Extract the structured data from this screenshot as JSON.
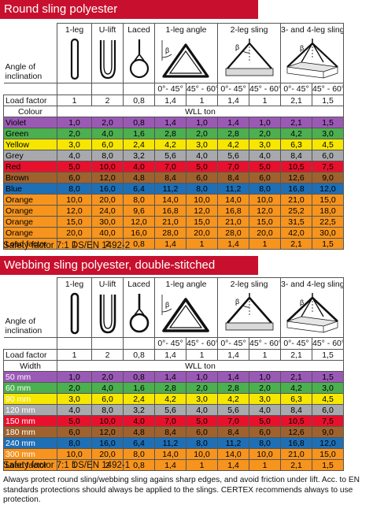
{
  "sections": [
    {
      "title": "Round sling polyester",
      "headers": [
        "1-leg",
        "U-lift",
        "Laced",
        "1-leg angle",
        "2-leg sling",
        "3- and 4-leg sling"
      ],
      "inclination_label": [
        "Angle of",
        "inclination"
      ],
      "angles": [
        "0°- 45°",
        "45° - 60°",
        "0°- 45°",
        "45° - 60°",
        "0°- 45°",
        "45° - 60°"
      ],
      "load_factor_label": "Load factor",
      "load_factors": [
        "1",
        "2",
        "0,8",
        "1,4",
        "1",
        "1,4",
        "1",
        "2,1",
        "1,5"
      ],
      "key_label": "Colour",
      "wll_label": "WLL ton",
      "rows": [
        {
          "label": "Violet",
          "bg": "#9b59b6",
          "fg": "#000000",
          "values": [
            "1,0",
            "2,0",
            "0,8",
            "1,4",
            "1,0",
            "1,4",
            "1,0",
            "2,1",
            "1,5"
          ]
        },
        {
          "label": "Green",
          "bg": "#4caf50",
          "fg": "#000000",
          "values": [
            "2,0",
            "4,0",
            "1,6",
            "2,8",
            "2,0",
            "2,8",
            "2,0",
            "4,2",
            "3,0"
          ]
        },
        {
          "label": "Yellow",
          "bg": "#f7e600",
          "fg": "#000000",
          "values": [
            "3,0",
            "6,0",
            "2,4",
            "4,2",
            "3,0",
            "4,2",
            "3,0",
            "6,3",
            "4,5"
          ]
        },
        {
          "label": "Grey",
          "bg": "#a7a9ac",
          "fg": "#000000",
          "values": [
            "4,0",
            "8,0",
            "3,2",
            "5,6",
            "4,0",
            "5,6",
            "4,0",
            "8,4",
            "6,0"
          ]
        },
        {
          "label": "Red",
          "bg": "#e8112d",
          "fg": "#000000",
          "values": [
            "5,0",
            "10,0",
            "4,0",
            "7,0",
            "5,0",
            "7,0",
            "5,0",
            "10,5",
            "7,5"
          ]
        },
        {
          "label": "Brown",
          "bg": "#a0622d",
          "fg": "#000000",
          "values": [
            "6,0",
            "12,0",
            "4,8",
            "8,4",
            "6,0",
            "8,4",
            "6,0",
            "12,6",
            "9,0"
          ]
        },
        {
          "label": "Blue",
          "bg": "#1f6fb5",
          "fg": "#000000",
          "values": [
            "8,0",
            "16,0",
            "6,4",
            "11,2",
            "8,0",
            "11,2",
            "8,0",
            "16,8",
            "12,0"
          ]
        },
        {
          "label": "Orange",
          "bg": "#f7941d",
          "fg": "#000000",
          "values": [
            "10,0",
            "20,0",
            "8,0",
            "14,0",
            "10,0",
            "14,0",
            "10,0",
            "21,0",
            "15,0"
          ]
        },
        {
          "label": "Orange",
          "bg": "#f7941d",
          "fg": "#000000",
          "values": [
            "12,0",
            "24,0",
            "9,6",
            "16,8",
            "12,0",
            "16,8",
            "12,0",
            "25,2",
            "18,0"
          ]
        },
        {
          "label": "Orange",
          "bg": "#f7941d",
          "fg": "#000000",
          "values": [
            "15,0",
            "30,0",
            "12,0",
            "21,0",
            "15,0",
            "21,0",
            "15,0",
            "31,5",
            "22,5"
          ]
        },
        {
          "label": "Orange",
          "bg": "#f7941d",
          "fg": "#000000",
          "values": [
            "20,0",
            "40,0",
            "16,0",
            "28,0",
            "20,0",
            "28,0",
            "20,0",
            "42,0",
            "30,0"
          ]
        },
        {
          "label": "Load factor",
          "bg": "#f7941d",
          "fg": "#000000",
          "values": [
            "1",
            "2",
            "0,8",
            "1,4",
            "1",
            "1,4",
            "1",
            "2,1",
            "1,5"
          ]
        }
      ],
      "safety": "Safety factor 7:1 DS/EN 1492-2"
    },
    {
      "title": "Webbing sling polyester, double-stitched",
      "headers": [
        "1-leg",
        "U-lift",
        "Laced",
        "1-leg angle",
        "2-leg sling",
        "3- and 4-leg sling"
      ],
      "inclination_label": [
        "Angle of",
        "inclination"
      ],
      "angles": [
        "0°- 45°",
        "45° - 60°",
        "0°- 45°",
        "45° - 60°",
        "0°- 45°",
        "45° - 60°"
      ],
      "load_factor_label": "Load factor",
      "load_factors": [
        "1",
        "2",
        "0,8",
        "1,4",
        "1",
        "1,4",
        "1",
        "2,1",
        "1,5"
      ],
      "key_label": "Width",
      "wll_label": "WLL ton",
      "rows": [
        {
          "label": "50 mm",
          "bg": "#9b59b6",
          "fg": "#ffffff",
          "values": [
            "1,0",
            "2,0",
            "0,8",
            "1,4",
            "1,0",
            "1,4",
            "1,0",
            "2,1",
            "1,5"
          ]
        },
        {
          "label": "60 mm",
          "bg": "#4caf50",
          "fg": "#ffffff",
          "values": [
            "2,0",
            "4,0",
            "1,6",
            "2,8",
            "2,0",
            "2,8",
            "2,0",
            "4,2",
            "3,0"
          ]
        },
        {
          "label": "90 mm",
          "bg": "#f7e600",
          "fg": "#ffffff",
          "values": [
            "3,0",
            "6,0",
            "2,4",
            "4,2",
            "3,0",
            "4,2",
            "3,0",
            "6,3",
            "4,5"
          ]
        },
        {
          "label": "120 mm",
          "bg": "#a7a9ac",
          "fg": "#ffffff",
          "values": [
            "4,0",
            "8,0",
            "3,2",
            "5,6",
            "4,0",
            "5,6",
            "4,0",
            "8,4",
            "6,0"
          ]
        },
        {
          "label": "150 mm",
          "bg": "#e8112d",
          "fg": "#ffffff",
          "values": [
            "5,0",
            "10,0",
            "4,0",
            "7,0",
            "5,0",
            "7,0",
            "5,0",
            "10,5",
            "7,5"
          ]
        },
        {
          "label": "180 mm",
          "bg": "#a0622d",
          "fg": "#ffffff",
          "values": [
            "6,0",
            "12,0",
            "4,8",
            "8,4",
            "6,0",
            "8,4",
            "6,0",
            "12,6",
            "9,0"
          ]
        },
        {
          "label": "240 mm",
          "bg": "#1f6fb5",
          "fg": "#ffffff",
          "values": [
            "8,0",
            "16,0",
            "6,4",
            "11,2",
            "8,0",
            "11,2",
            "8,0",
            "16,8",
            "12,0"
          ]
        },
        {
          "label": "300 mm",
          "bg": "#f7941d",
          "fg": "#ffffff",
          "values": [
            "10,0",
            "20,0",
            "8,0",
            "14,0",
            "10,0",
            "14,0",
            "10,0",
            "21,0",
            "15,0"
          ]
        },
        {
          "label": "Load factor",
          "bg": "#f7941d",
          "fg": "#000000",
          "values": [
            "1",
            "2",
            "0,8",
            "1,4",
            "1",
            "1,4",
            "1",
            "2,1",
            "1,5"
          ]
        }
      ],
      "safety": "Safety factor 7:1 DS/EN 1492-1"
    }
  ],
  "beta_symbol": "β",
  "footnote": "Always protect round sling/webbing sling agains sharp edges, and avoid friction under lift. Acc. to EN standards protections should always be applied to the slings. CERTEX recommends always to use protection."
}
